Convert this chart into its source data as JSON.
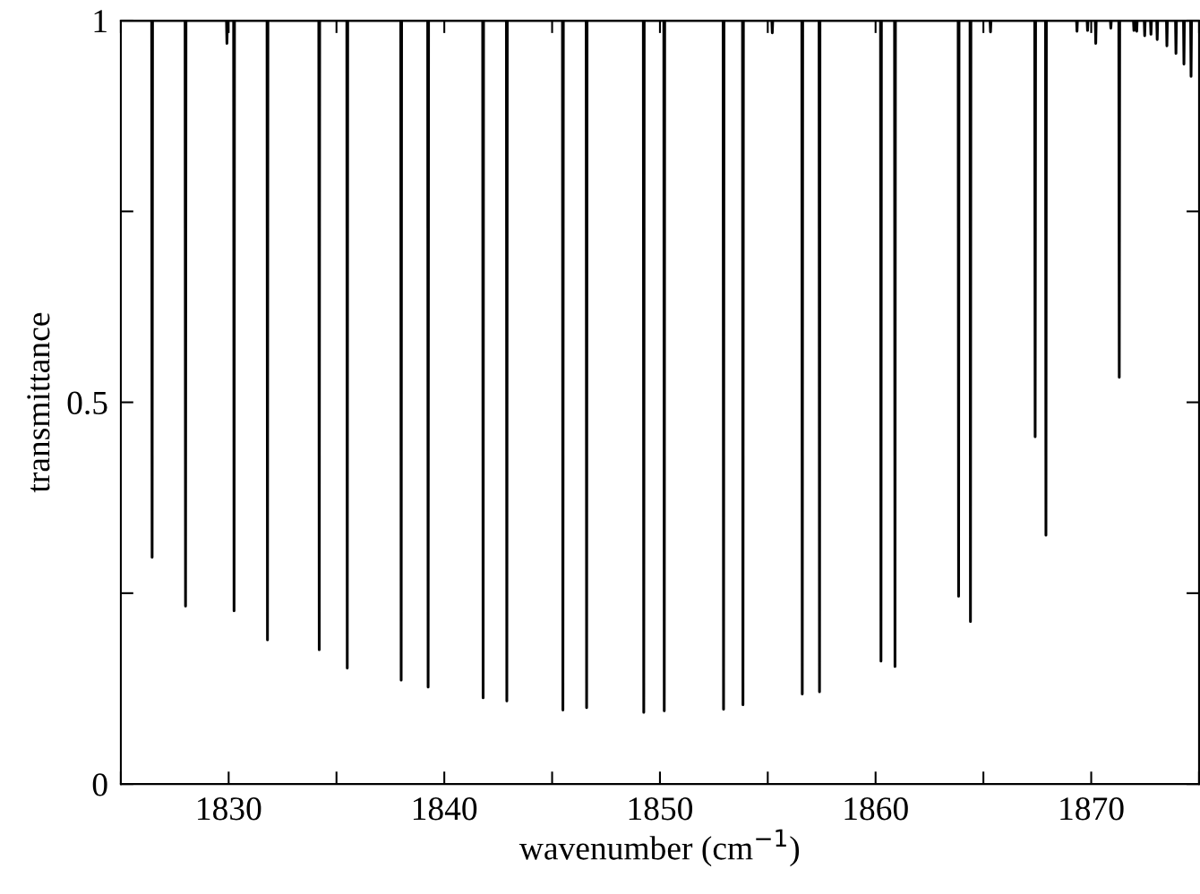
{
  "chart_data": {
    "type": "line",
    "xlabel": "wavenumber (cm$^{−1}$)",
    "ylabel": "transmittance",
    "xlim": [
      1825,
      1875
    ],
    "ylim": [
      0,
      1
    ],
    "xticks": [
      {
        "value": 1825,
        "label": null
      },
      1830,
      {
        "value": 1835,
        "label": null
      },
      1840,
      {
        "value": 1845,
        "label": null
      },
      1850,
      {
        "value": 1855,
        "label": null
      },
      1860,
      {
        "value": 1865,
        "label": null
      },
      1870,
      {
        "value": 1875,
        "label": null
      }
    ],
    "yticks": [
      0,
      {
        "value": 0.25,
        "label": null
      },
      0.5,
      {
        "value": 0.75,
        "label": null
      },
      1
    ],
    "grid": false,
    "legend": false,
    "marker": "none",
    "line_style": "solid",
    "series": [
      {
        "color": "#000000",
        "x": [
          1825,
          1826.43,
          1826.45,
          1826.47,
          1827.98,
          1828.0,
          1828.02,
          1829.9,
          1829.92,
          1829.94,
          1830.23,
          1830.25,
          1830.27,
          1831.78,
          1831.8,
          1831.82,
          1834.18,
          1834.2,
          1834.22,
          1835.48,
          1835.5,
          1835.52,
          1837.98,
          1838.0,
          1838.02,
          1839.23,
          1839.25,
          1839.27,
          1841.78,
          1841.8,
          1841.82,
          1842.88,
          1842.9,
          1842.92,
          1845.48,
          1845.5,
          1845.52,
          1846.58,
          1846.6,
          1846.62,
          1849.23,
          1849.25,
          1849.27,
          1850.18,
          1850.2,
          1850.22,
          1852.93,
          1852.95,
          1852.97,
          1853.83,
          1853.85,
          1853.87,
          1855.19,
          1855.21,
          1855.23,
          1856.58,
          1856.6,
          1856.62,
          1857.38,
          1857.4,
          1857.42,
          1860.23,
          1860.25,
          1860.27,
          1860.88,
          1860.9,
          1860.92,
          1863.83,
          1863.85,
          1863.87,
          1864.38,
          1864.4,
          1864.42,
          1865.31,
          1865.33,
          1865.35,
          1867.38,
          1867.4,
          1867.42,
          1867.88,
          1867.9,
          1867.92,
          1869.32,
          1869.34,
          1869.36,
          1869.81,
          1869.83,
          1869.85,
          1870.19,
          1870.21,
          1870.23,
          1870.89,
          1870.91,
          1870.93,
          1871.28,
          1871.3,
          1871.32,
          1871.96,
          1871.98,
          1872.0,
          1872.09,
          1872.11,
          1872.13,
          1872.46,
          1872.48,
          1872.5,
          1872.75,
          1872.77,
          1872.79,
          1873.04,
          1873.06,
          1873.08,
          1873.49,
          1873.51,
          1873.53,
          1873.91,
          1873.93,
          1873.95,
          1874.28,
          1874.3,
          1874.32,
          1874.61,
          1874.63,
          1874.65,
          1875
        ],
        "values": [
          1,
          1,
          0.297,
          1,
          1,
          0.233,
          1,
          1,
          0.97,
          1,
          1,
          0.227,
          1,
          1,
          0.189,
          1,
          1,
          0.176,
          1,
          1,
          0.152,
          1,
          1,
          0.136,
          1,
          1,
          0.127,
          1,
          1,
          0.113,
          1,
          1,
          0.109,
          1,
          1,
          0.097,
          1,
          1,
          0.1,
          1,
          1,
          0.094,
          1,
          1,
          0.096,
          1,
          1,
          0.098,
          1,
          1,
          0.104,
          1,
          1,
          0.984,
          1,
          1,
          0.118,
          1,
          1,
          0.121,
          1,
          1,
          0.161,
          1,
          1,
          0.154,
          1,
          1,
          0.246,
          1,
          1,
          0.213,
          1,
          1,
          0.985,
          1,
          1,
          0.455,
          1,
          1,
          0.326,
          1,
          1,
          0.986,
          1,
          1,
          0.987,
          1,
          1,
          0.97,
          1,
          1,
          0.99,
          1,
          1,
          0.533,
          1,
          1,
          0.987,
          1,
          1,
          0.986,
          1,
          1,
          0.98,
          1,
          1,
          0.982,
          1,
          1,
          0.975,
          1,
          1,
          0.967,
          1,
          1,
          0.957,
          1,
          1,
          0.943,
          1,
          1,
          0.927,
          1,
          1
        ]
      }
    ]
  }
}
